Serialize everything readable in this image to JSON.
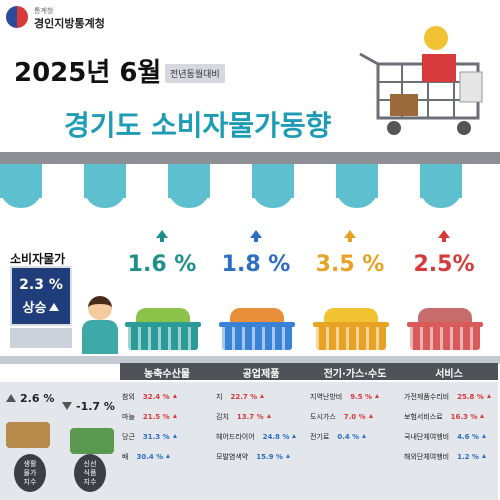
{
  "header": {
    "org_small": "통계청",
    "org_name": "경인지방통계청",
    "period": "2025년 6월",
    "basis_tag": "전년동월대비",
    "title": "경기도 소비자물가동향"
  },
  "cpi": {
    "label": "소비자물가",
    "value": "2.3 %",
    "direction": "상승"
  },
  "indices": {
    "living": {
      "value": "2.6 %",
      "label_lines": [
        "생활",
        "물가",
        "지수"
      ]
    },
    "fresh": {
      "value": "-1.7 %",
      "label_lines": [
        "신선",
        "식품",
        "지수"
      ]
    }
  },
  "categories": [
    {
      "name": "농축수산물",
      "change": "1.6 %",
      "color": "#1f8f8c",
      "items": [
        {
          "name": "참외",
          "value": "32.4 %",
          "dir": "up"
        },
        {
          "name": "마늘",
          "value": "21.5 %",
          "dir": "up"
        },
        {
          "name": "당근",
          "value": "31.3 %",
          "dir": "down"
        },
        {
          "name": "배",
          "value": "30.4 %",
          "dir": "down"
        }
      ]
    },
    {
      "name": "공업제품",
      "change": "1.8 %",
      "color": "#2e6dc4",
      "items": [
        {
          "name": "지",
          "value": "22.7 %",
          "dir": "up"
        },
        {
          "name": "김치",
          "value": "13.7 %",
          "dir": "up"
        },
        {
          "name": "헤어드라이어",
          "value": "24.8 %",
          "dir": "down"
        },
        {
          "name": "모발염색약",
          "value": "15.9 %",
          "dir": "down"
        }
      ]
    },
    {
      "name": "전기·가스·수도",
      "change": "3.5 %",
      "color": "#e8a326",
      "items": [
        {
          "name": "지역난방비",
          "value": "9.5 %",
          "dir": "up"
        },
        {
          "name": "도시가스",
          "value": "7.0 %",
          "dir": "up"
        },
        {
          "name": "전기료",
          "value": "0.4 %",
          "dir": "down"
        }
      ]
    },
    {
      "name": "서비스",
      "change": "2.5%",
      "color": "#d63a3a",
      "items": [
        {
          "name": "가전제품수리비",
          "value": "25.8 %",
          "dir": "up"
        },
        {
          "name": "보험서비스료",
          "value": "16.3 %",
          "dir": "up"
        },
        {
          "name": "국내단체여행비",
          "value": "4.6 %",
          "dir": "down"
        },
        {
          "name": "해외단체여행비",
          "value": "1.2 %",
          "dir": "down"
        }
      ]
    }
  ],
  "icons": [
    "government-logo-icon",
    "shopping-cart-icon",
    "basket-icon",
    "up-arrow-icon",
    "down-arrow-icon",
    "clerk-icon"
  ],
  "colors": {
    "title": "#1e9cb6",
    "cpi_box": "#1f3d7a",
    "up": "#d63a3a",
    "down": "#2e6dc4"
  }
}
